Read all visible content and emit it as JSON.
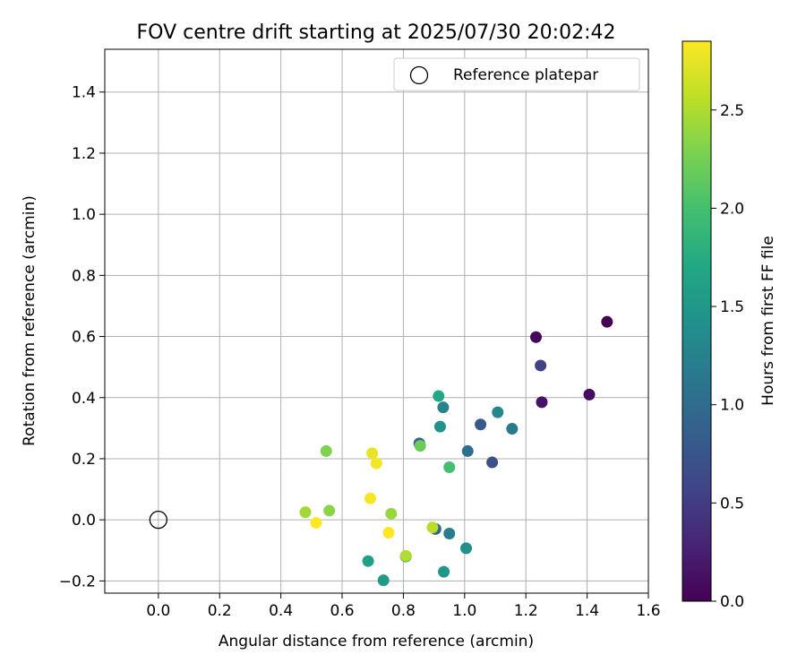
{
  "chart_data": {
    "type": "scatter",
    "title": "FOV centre drift starting at 2025/07/30 20:02:42",
    "xlabel": "Angular distance from reference (arcmin)",
    "ylabel": "Rotation from reference (arcmin)",
    "xlim": [
      -0.175,
      1.6
    ],
    "ylim": [
      -0.24,
      1.54
    ],
    "xticks": [
      "0.0",
      "0.2",
      "0.4",
      "0.6",
      "0.8",
      "1.0",
      "1.2",
      "1.4",
      "1.6"
    ],
    "yticks": [
      "−0.2",
      "0.0",
      "0.2",
      "0.4",
      "0.6",
      "0.8",
      "1.0",
      "1.2",
      "1.4"
    ],
    "grid": true,
    "legend": {
      "position": "top-right",
      "entries": [
        "Reference platepar"
      ]
    },
    "reference_point": {
      "x": 0.0,
      "y": 0.0
    },
    "colorbar": {
      "label": "Hours from first FF file",
      "range": [
        0.0,
        2.85
      ],
      "ticks": [
        "0.0",
        "0.5",
        "1.0",
        "1.5",
        "2.0",
        "2.5"
      ],
      "colormap": "viridis"
    },
    "points": [
      {
        "x": 1.465,
        "y": 0.648,
        "t": 0.0
      },
      {
        "x": 1.233,
        "y": 0.598,
        "t": 0.05
      },
      {
        "x": 1.407,
        "y": 0.41,
        "t": 0.1
      },
      {
        "x": 1.252,
        "y": 0.385,
        "t": 0.15
      },
      {
        "x": 1.248,
        "y": 0.505,
        "t": 0.55
      },
      {
        "x": 1.09,
        "y": 0.188,
        "t": 0.7
      },
      {
        "x": 1.052,
        "y": 0.312,
        "t": 0.8
      },
      {
        "x": 0.852,
        "y": 0.25,
        "t": 0.9
      },
      {
        "x": 0.905,
        "y": -0.03,
        "t": 0.95
      },
      {
        "x": 0.808,
        "y": -0.12,
        "t": 1.0
      },
      {
        "x": 1.01,
        "y": 0.225,
        "t": 1.05
      },
      {
        "x": 1.155,
        "y": 0.298,
        "t": 1.15
      },
      {
        "x": 0.95,
        "y": -0.045,
        "t": 1.2
      },
      {
        "x": 0.93,
        "y": 0.368,
        "t": 1.25
      },
      {
        "x": 1.108,
        "y": 0.352,
        "t": 1.3
      },
      {
        "x": 1.005,
        "y": -0.093,
        "t": 1.4
      },
      {
        "x": 0.92,
        "y": 0.305,
        "t": 1.45
      },
      {
        "x": 0.932,
        "y": -0.17,
        "t": 1.5
      },
      {
        "x": 0.735,
        "y": -0.198,
        "t": 1.55
      },
      {
        "x": 0.685,
        "y": -0.135,
        "t": 1.6
      },
      {
        "x": 0.915,
        "y": 0.405,
        "t": 1.7
      },
      {
        "x": 0.95,
        "y": 0.172,
        "t": 2.0
      },
      {
        "x": 0.855,
        "y": 0.242,
        "t": 2.2
      },
      {
        "x": 0.548,
        "y": 0.225,
        "t": 2.3
      },
      {
        "x": 0.558,
        "y": 0.03,
        "t": 2.35
      },
      {
        "x": 0.76,
        "y": 0.02,
        "t": 2.4
      },
      {
        "x": 0.48,
        "y": 0.025,
        "t": 2.45
      },
      {
        "x": 0.808,
        "y": -0.118,
        "t": 2.5
      },
      {
        "x": 0.895,
        "y": -0.025,
        "t": 2.55
      },
      {
        "x": 0.698,
        "y": 0.218,
        "t": 2.75
      },
      {
        "x": 0.712,
        "y": 0.185,
        "t": 2.8
      },
      {
        "x": 0.692,
        "y": 0.07,
        "t": 2.82
      },
      {
        "x": 0.515,
        "y": -0.01,
        "t": 2.85
      },
      {
        "x": 0.752,
        "y": -0.042,
        "t": 2.85
      }
    ]
  }
}
